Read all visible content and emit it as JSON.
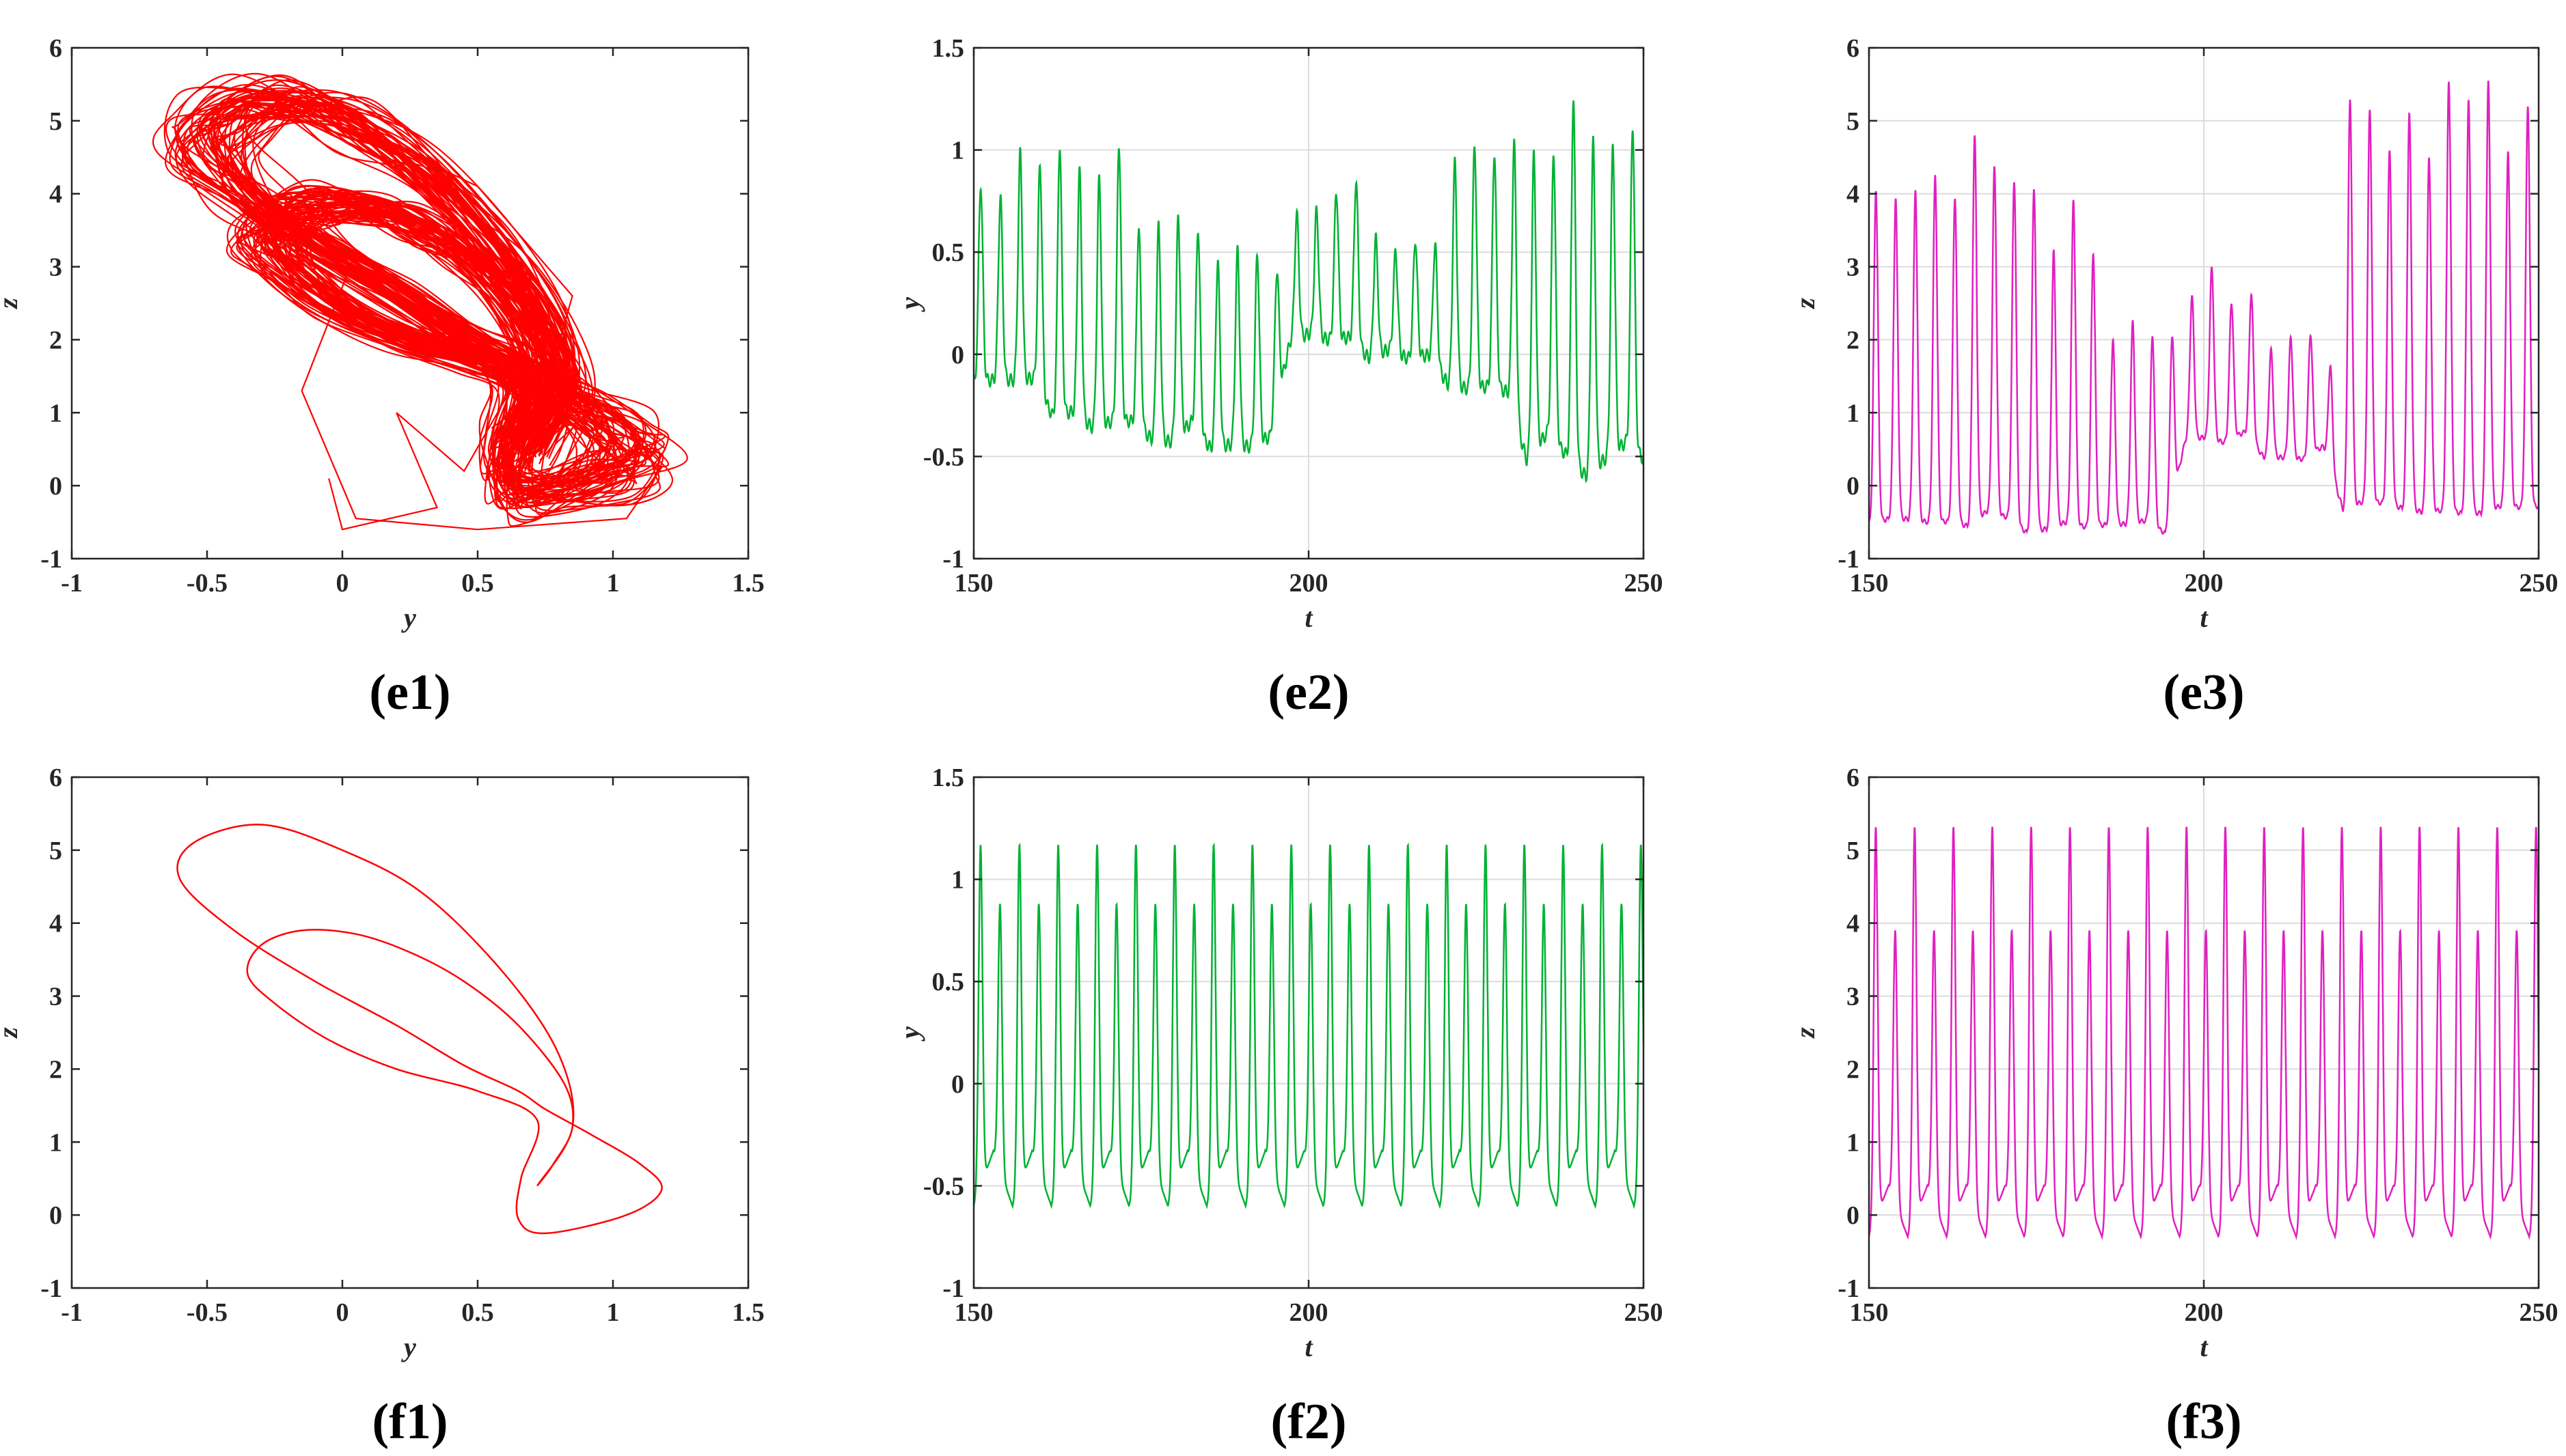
{
  "chart_data": [
    {
      "id": "e1",
      "caption": "e1",
      "type": "line",
      "kind": "phase",
      "style": "chaotic",
      "xlabel": "y",
      "ylabel": "z",
      "xlim": [
        -1,
        1.5
      ],
      "ylim": [
        -1,
        6
      ],
      "xticks": [
        -1,
        -0.5,
        0,
        0.5,
        1,
        1.5
      ],
      "xtick_labels": [
        "-1",
        "-0.5",
        "0",
        "0.5",
        "1",
        "1.5"
      ],
      "yticks": [
        -1,
        0,
        1,
        2,
        3,
        4,
        5,
        6
      ],
      "ytick_labels": [
        "-1",
        "0",
        "1",
        "2",
        "3",
        "4",
        "5",
        "6"
      ],
      "grid": false,
      "color": "#ff0000",
      "series": [
        {
          "x": [
            -0.6,
            -0.4,
            0.0,
            0.5,
            0.85,
            0.75,
            0.55,
            0.9,
            1.18,
            1.05,
            0.5,
            0.05,
            -0.15,
            0.05,
            0.3,
            0.62,
            0.45,
            0.2,
            0.35,
            0.0,
            -0.05
          ],
          "y": [
            4.7,
            5.3,
            5.0,
            4.1,
            2.6,
            1.3,
            0.5,
            0.9,
            0.25,
            -0.45,
            -0.6,
            -0.45,
            1.3,
            3.2,
            2.6,
            1.3,
            0.2,
            1.0,
            -0.3,
            -0.6,
            0.1
          ]
        }
      ],
      "x_units_hint": "y",
      "y_units_hint": "z"
    },
    {
      "id": "e2",
      "caption": "e2",
      "type": "line",
      "kind": "time",
      "style": "chaotic",
      "xlabel": "t",
      "ylabel": "y",
      "xlim": [
        150,
        250
      ],
      "ylim": [
        -1,
        1.5
      ],
      "xticks": [
        150,
        200,
        250
      ],
      "xtick_labels": [
        "150",
        "200",
        "250"
      ],
      "yticks": [
        -1,
        -0.5,
        0,
        0.5,
        1,
        1.5
      ],
      "ytick_labels": [
        "-1",
        "-0.5",
        "0",
        "0.5",
        "1",
        "1.5"
      ],
      "grid": true,
      "color": "#00b233",
      "period": 2.95,
      "lows": [
        -0.15,
        -0.38,
        -0.43,
        -0.45,
        0.1,
        0.0,
        -0.15,
        -0.58,
        -0.6
      ],
      "highs": [
        0.97,
        1.03,
        0.73,
        0.5,
        0.85,
        0.62,
        1.17,
        1.2,
        1.2
      ]
    },
    {
      "id": "e3",
      "caption": "e3",
      "type": "line",
      "kind": "time",
      "style": "chaotic",
      "xlabel": "t",
      "ylabel": "z",
      "xlim": [
        150,
        250
      ],
      "ylim": [
        -1,
        6
      ],
      "xticks": [
        150,
        200,
        250
      ],
      "xtick_labels": [
        "150",
        "200",
        "250"
      ],
      "yticks": [
        -1,
        0,
        1,
        2,
        3,
        4,
        5,
        6
      ],
      "ytick_labels": [
        "-1",
        "0",
        "1",
        "2",
        "3",
        "4",
        "5",
        "6"
      ],
      "grid": true,
      "color": "#e020c0",
      "period": 2.95,
      "lows": [
        -0.65,
        -0.5,
        -0.6,
        -0.65,
        0.8,
        0.5,
        -0.3,
        -0.35,
        -0.3
      ],
      "highs": [
        4.7,
        4.85,
        4.0,
        2.5,
        3.0,
        2.0,
        5.1,
        5.35,
        5.35
      ]
    },
    {
      "id": "f1",
      "caption": "f1",
      "type": "line",
      "kind": "phase",
      "style": "periodic",
      "xlabel": "y",
      "ylabel": "z",
      "xlim": [
        -1,
        1.5
      ],
      "ylim": [
        -1,
        6
      ],
      "xticks": [
        -1,
        -0.5,
        0,
        0.5,
        1,
        1.5
      ],
      "xtick_labels": [
        "-1",
        "-0.5",
        "0",
        "0.5",
        "1",
        "1.5"
      ],
      "yticks": [
        -1,
        0,
        1,
        2,
        3,
        4,
        5,
        6
      ],
      "ytick_labels": [
        "-1",
        "0",
        "1",
        "2",
        "3",
        "4",
        "5",
        "6"
      ],
      "grid": false,
      "color": "#ff0000",
      "series": [
        {
          "x": [
            0.72,
            0.85,
            0.8,
            0.6,
            0.3,
            0.0,
            -0.3,
            -0.55,
            -0.6,
            -0.4,
            -0.1,
            0.2,
            0.45,
            0.65,
            0.75,
            0.92,
            1.1,
            1.18,
            1.05,
            0.75,
            0.65,
            0.66,
            0.72,
            0.5,
            0.2,
            -0.05,
            -0.25,
            -0.35,
            -0.3,
            -0.15,
            0.05,
            0.25,
            0.45,
            0.65,
            0.82,
            0.85,
            0.78,
            0.72
          ],
          "y": [
            0.4,
            1.2,
            2.2,
            3.3,
            4.4,
            5.0,
            5.35,
            5.1,
            4.6,
            3.9,
            3.2,
            2.6,
            2.05,
            1.7,
            1.45,
            1.1,
            0.7,
            0.35,
            0.0,
            -0.25,
            -0.05,
            0.5,
            1.3,
            1.7,
            2.0,
            2.4,
            2.9,
            3.3,
            3.7,
            3.9,
            3.85,
            3.6,
            3.2,
            2.6,
            1.8,
            1.2,
            0.7,
            0.4
          ]
        }
      ]
    },
    {
      "id": "f2",
      "caption": "f2",
      "type": "line",
      "kind": "time",
      "style": "periodic",
      "xlabel": "t",
      "ylabel": "y",
      "xlim": [
        150,
        250
      ],
      "ylim": [
        -1,
        1.5
      ],
      "xticks": [
        150,
        200,
        250
      ],
      "xtick_labels": [
        "150",
        "200",
        "250"
      ],
      "yticks": [
        -1,
        -0.5,
        0,
        0.5,
        1,
        1.5
      ],
      "ytick_labels": [
        "-1",
        "-0.5",
        "0",
        "0.5",
        "1",
        "1.5"
      ],
      "grid": true,
      "color": "#00b233",
      "period": 2.9,
      "p_max": 1.17,
      "p_min": -0.6,
      "s_max": 0.88,
      "s_min": -0.33
    },
    {
      "id": "f3",
      "caption": "f3",
      "type": "line",
      "kind": "time",
      "style": "periodic",
      "xlabel": "t",
      "ylabel": "z",
      "xlim": [
        150,
        250
      ],
      "ylim": [
        -1,
        6
      ],
      "xticks": [
        150,
        200,
        250
      ],
      "xtick_labels": [
        "150",
        "200",
        "250"
      ],
      "yticks": [
        -1,
        0,
        1,
        2,
        3,
        4,
        5,
        6
      ],
      "ytick_labels": [
        "-1",
        "0",
        "1",
        "2",
        "3",
        "4",
        "5",
        "6"
      ],
      "grid": true,
      "color": "#e020c0",
      "period": 2.9,
      "p_max": 5.32,
      "p_min": -0.3,
      "s_max": 3.9,
      "s_min": 0.4
    }
  ]
}
